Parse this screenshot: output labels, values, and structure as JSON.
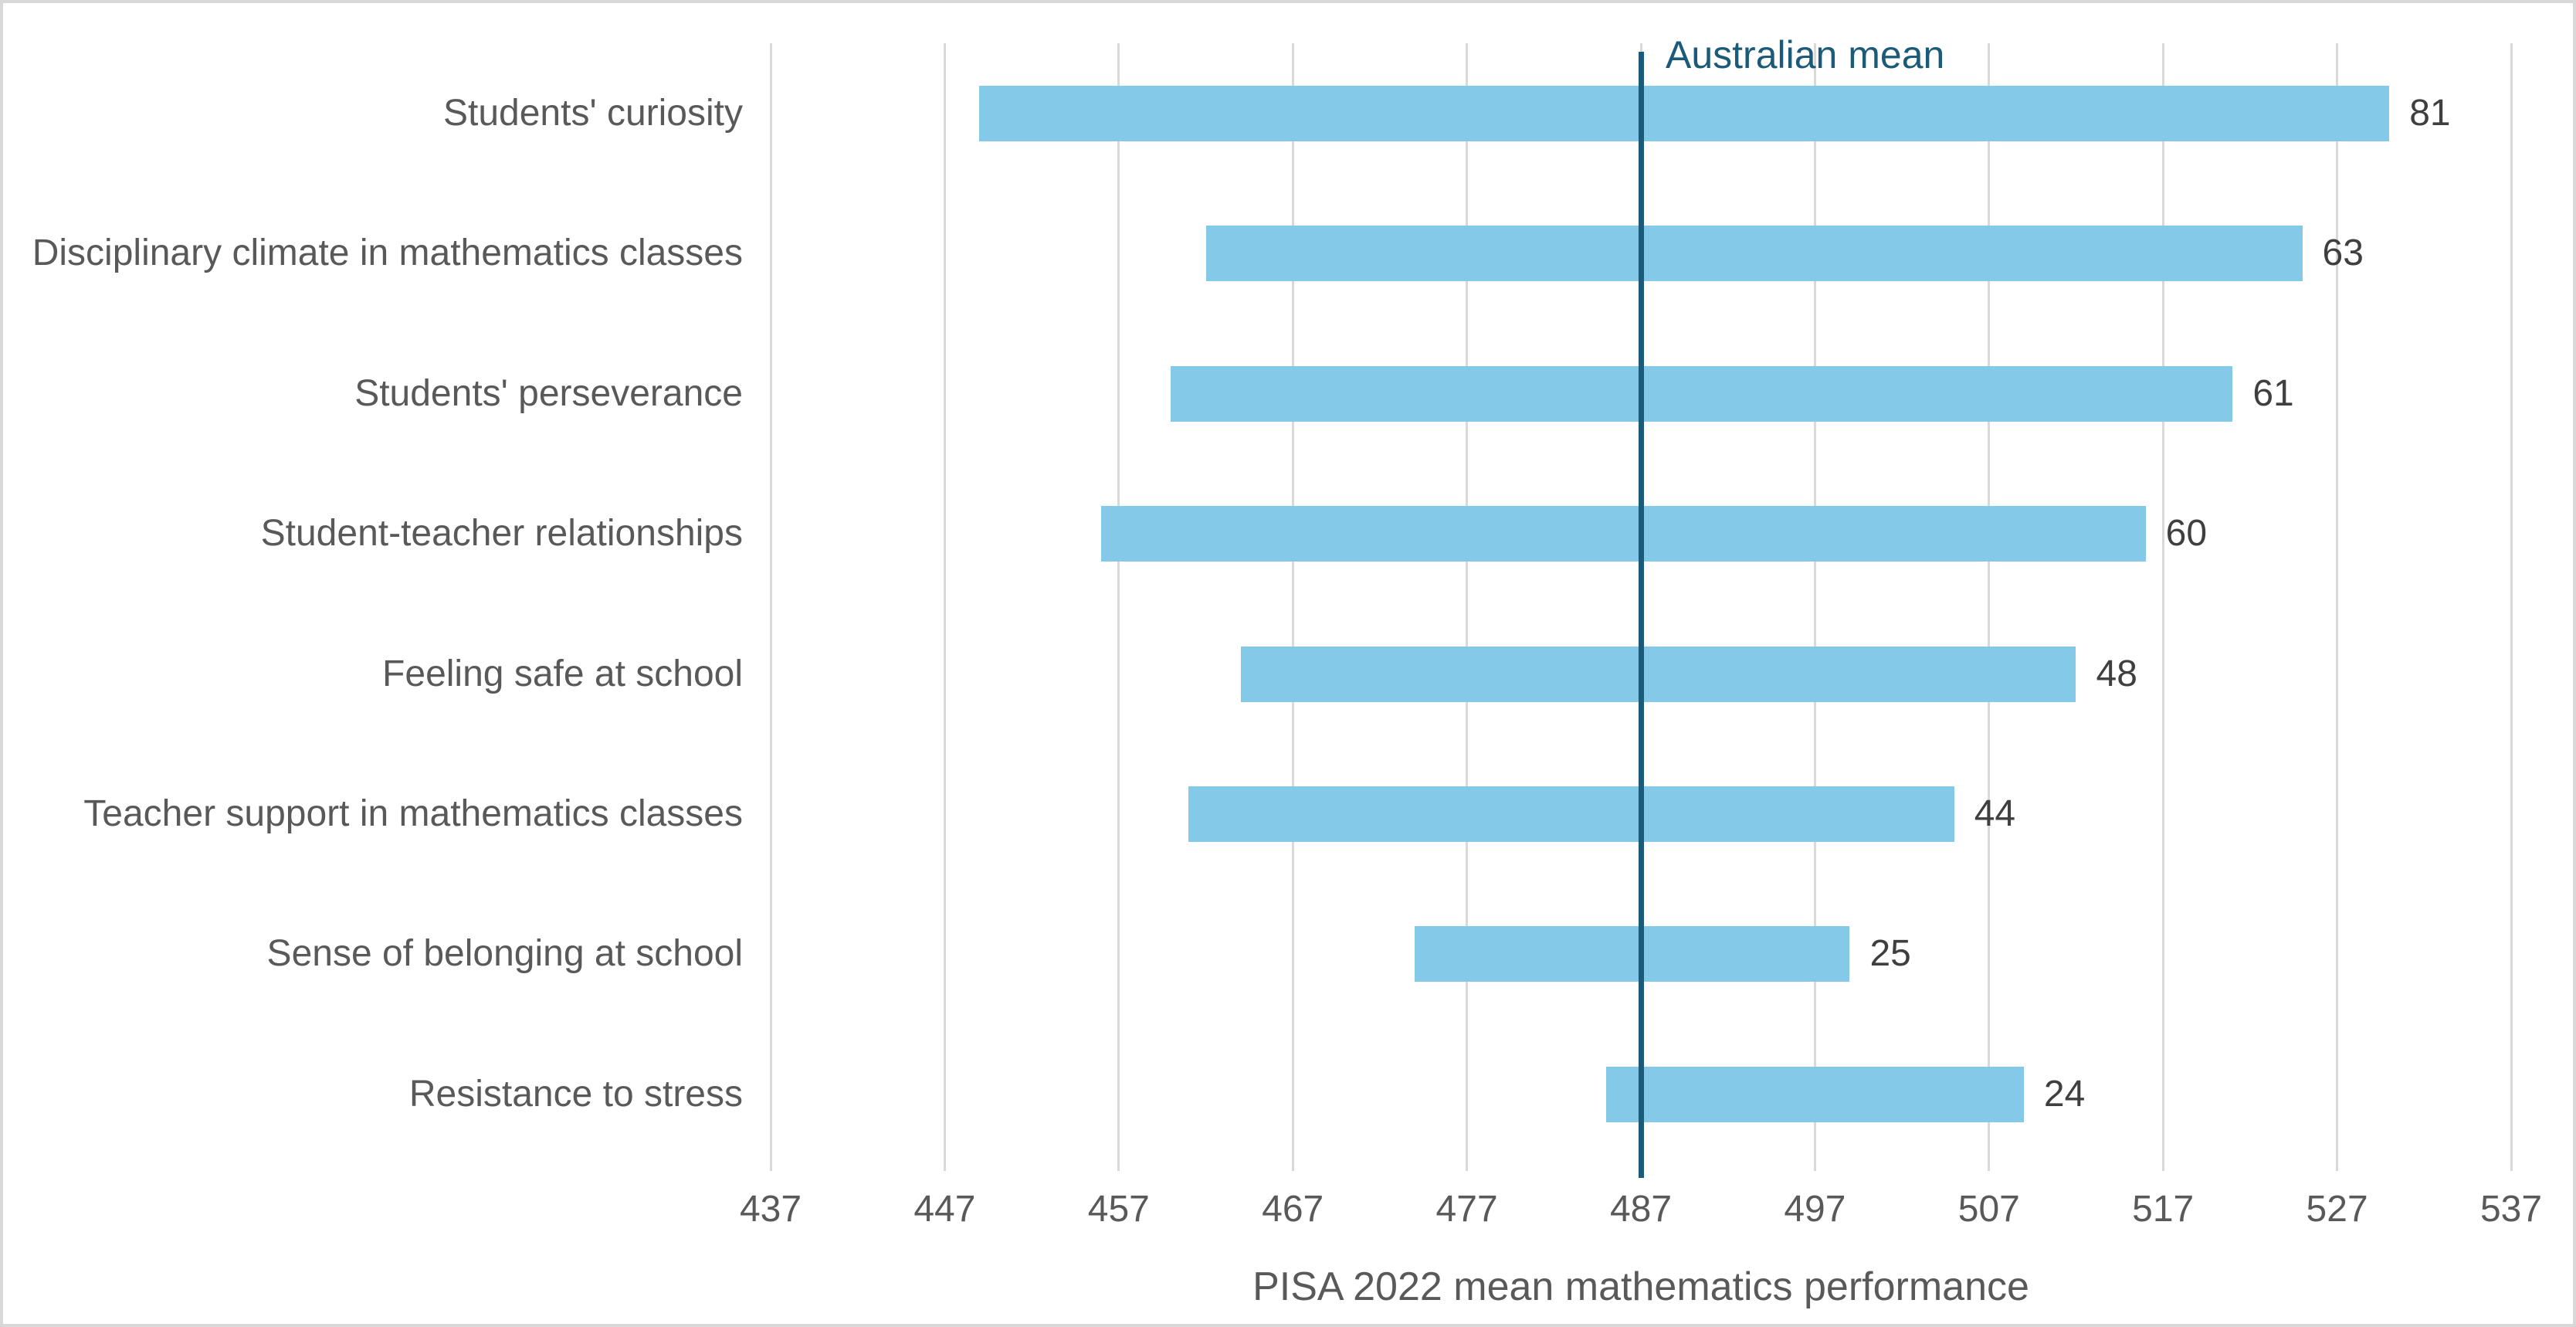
{
  "figure": {
    "background_color": "#ffffff",
    "border_color": "#d8d8d8"
  },
  "chart_data": {
    "type": "bar",
    "variant": "horizontal-range-bars",
    "title": "",
    "xlabel": "PISA 2022 mean mathematics performance",
    "ylabel": "",
    "xlim": [
      437,
      537
    ],
    "x_ticks": [
      437,
      447,
      457,
      467,
      477,
      487,
      497,
      507,
      517,
      527,
      537
    ],
    "grid": "vertical-gridlines-on",
    "legend": "none",
    "bar_color": "#85c9e8",
    "gridline_color": "#d9d9d9",
    "axis_text_color": "#595959",
    "value_label_color": "#3f3f3f",
    "reference_line": {
      "value": 487,
      "label": "Australian mean",
      "color": "#1b5a78"
    },
    "rows": [
      {
        "label": "Students' curiosity",
        "low": 449,
        "high": 530,
        "value": 81
      },
      {
        "label": "Disciplinary climate in mathematics classes",
        "low": 462,
        "high": 525,
        "value": 63
      },
      {
        "label": "Students' perseverance",
        "low": 460,
        "high": 521,
        "value": 61
      },
      {
        "label": "Student-teacher relationships",
        "low": 456,
        "high": 516,
        "value": 60
      },
      {
        "label": "Feeling safe at school",
        "low": 464,
        "high": 512,
        "value": 48
      },
      {
        "label": "Teacher support in mathematics classes",
        "low": 461,
        "high": 505,
        "value": 44
      },
      {
        "label": "Sense of belonging at school",
        "low": 474,
        "high": 499,
        "value": 25
      },
      {
        "label": "Resistance to stress",
        "low": 485,
        "high": 509,
        "value": 24
      }
    ]
  }
}
